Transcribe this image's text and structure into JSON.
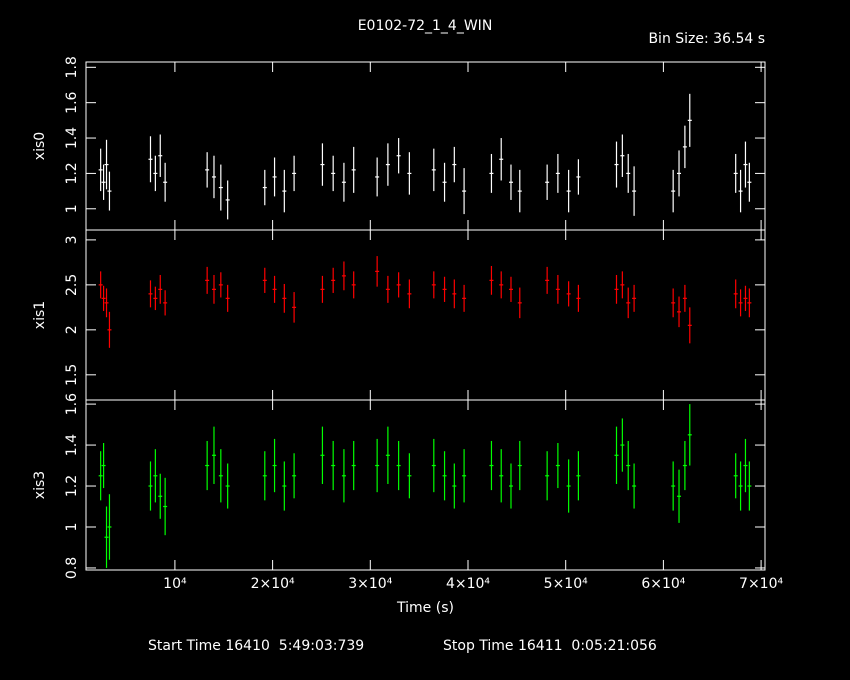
{
  "chart_data": [
    {
      "type": "scatter",
      "title": "E0102-72_1_4_WIN",
      "subtitle": "Bin Size: 36.54 s",
      "ylabel": "xis0",
      "color": "#ffffff",
      "x": [
        2400,
        2700,
        3000,
        3300,
        7500,
        8000,
        8500,
        9000,
        13300,
        14000,
        14700,
        15400,
        19200,
        20200,
        21200,
        22200,
        25100,
        26200,
        27300,
        28300,
        30700,
        31800,
        32900,
        34000,
        36500,
        37600,
        38600,
        39600,
        42400,
        43400,
        44400,
        45300,
        48100,
        49200,
        50300,
        51300,
        55200,
        55800,
        56400,
        57000,
        61000,
        61600,
        62200,
        62700,
        67400,
        67900,
        68400,
        68800
      ],
      "values": [
        1.22,
        1.15,
        1.25,
        1.1,
        1.28,
        1.2,
        1.3,
        1.15,
        1.22,
        1.18,
        1.12,
        1.05,
        1.12,
        1.18,
        1.1,
        1.2,
        1.25,
        1.2,
        1.15,
        1.22,
        1.18,
        1.25,
        1.3,
        1.2,
        1.22,
        1.15,
        1.25,
        1.1,
        1.2,
        1.28,
        1.15,
        1.1,
        1.15,
        1.2,
        1.1,
        1.18,
        1.25,
        1.3,
        1.2,
        1.1,
        1.1,
        1.2,
        1.35,
        1.5,
        1.2,
        1.1,
        1.25,
        1.15
      ],
      "errors": [
        0.12,
        0.1,
        0.14,
        0.11,
        0.13,
        0.1,
        0.12,
        0.11,
        0.1,
        0.12,
        0.13,
        0.11,
        0.1,
        0.11,
        0.12,
        0.1,
        0.12,
        0.1,
        0.11,
        0.13,
        0.11,
        0.12,
        0.1,
        0.12,
        0.12,
        0.11,
        0.1,
        0.13,
        0.11,
        0.12,
        0.1,
        0.12,
        0.1,
        0.11,
        0.12,
        0.1,
        0.13,
        0.12,
        0.11,
        0.14,
        0.12,
        0.13,
        0.12,
        0.15,
        0.11,
        0.12,
        0.13,
        0.11
      ],
      "ylim": [
        0.88,
        1.83
      ],
      "yticks": [
        1,
        1.2,
        1.4,
        1.6,
        1.8
      ]
    },
    {
      "type": "scatter",
      "ylabel": "xis1",
      "color": "#ff0000",
      "x": [
        2400,
        2700,
        3000,
        3300,
        7500,
        8000,
        8500,
        9000,
        13300,
        14000,
        14700,
        15400,
        19200,
        20200,
        21200,
        22200,
        25100,
        26200,
        27300,
        28300,
        30700,
        31800,
        32900,
        34000,
        36500,
        37600,
        38600,
        39600,
        42400,
        43400,
        44400,
        45300,
        48100,
        49200,
        50300,
        51300,
        55200,
        55800,
        56400,
        57000,
        61000,
        61600,
        62200,
        62700,
        67400,
        67900,
        68400,
        68800
      ],
      "values": [
        2.5,
        2.35,
        2.3,
        2.0,
        2.4,
        2.35,
        2.45,
        2.3,
        2.55,
        2.45,
        2.5,
        2.35,
        2.55,
        2.45,
        2.35,
        2.25,
        2.45,
        2.55,
        2.6,
        2.5,
        2.65,
        2.45,
        2.5,
        2.4,
        2.5,
        2.45,
        2.4,
        2.35,
        2.55,
        2.5,
        2.45,
        2.3,
        2.55,
        2.45,
        2.4,
        2.35,
        2.45,
        2.5,
        2.3,
        2.35,
        2.3,
        2.2,
        2.35,
        2.05,
        2.4,
        2.3,
        2.35,
        2.3
      ],
      "errors": [
        0.15,
        0.14,
        0.16,
        0.2,
        0.15,
        0.13,
        0.16,
        0.14,
        0.15,
        0.16,
        0.14,
        0.15,
        0.14,
        0.15,
        0.16,
        0.17,
        0.15,
        0.14,
        0.16,
        0.15,
        0.17,
        0.15,
        0.14,
        0.16,
        0.15,
        0.14,
        0.16,
        0.15,
        0.16,
        0.15,
        0.14,
        0.17,
        0.15,
        0.16,
        0.14,
        0.15,
        0.16,
        0.15,
        0.17,
        0.15,
        0.16,
        0.17,
        0.15,
        0.2,
        0.16,
        0.15,
        0.14,
        0.16
      ],
      "ylim": [
        1.22,
        3.11
      ],
      "yticks": [
        1.5,
        2,
        2.5,
        3
      ]
    },
    {
      "type": "scatter",
      "ylabel": "xis3",
      "xlabel": "Time (s)",
      "color": "#00ff00",
      "x": [
        2400,
        2700,
        3000,
        3300,
        7500,
        8000,
        8500,
        9000,
        13300,
        14000,
        14700,
        15400,
        19200,
        20200,
        21200,
        22200,
        25100,
        26200,
        27300,
        28300,
        30700,
        31800,
        32900,
        34000,
        36500,
        37600,
        38600,
        39600,
        42400,
        43400,
        44400,
        45300,
        48100,
        49200,
        50300,
        51300,
        55200,
        55800,
        56400,
        57000,
        61000,
        61600,
        62200,
        62700,
        67400,
        67900,
        68400,
        68800
      ],
      "values": [
        1.25,
        1.3,
        0.95,
        1.0,
        1.2,
        1.25,
        1.15,
        1.1,
        1.3,
        1.35,
        1.25,
        1.2,
        1.25,
        1.3,
        1.2,
        1.25,
        1.35,
        1.3,
        1.25,
        1.3,
        1.3,
        1.35,
        1.3,
        1.25,
        1.3,
        1.25,
        1.2,
        1.25,
        1.3,
        1.25,
        1.2,
        1.3,
        1.25,
        1.3,
        1.2,
        1.25,
        1.35,
        1.4,
        1.3,
        1.2,
        1.2,
        1.15,
        1.3,
        1.45,
        1.25,
        1.2,
        1.3,
        1.2
      ],
      "errors": [
        0.12,
        0.11,
        0.15,
        0.16,
        0.12,
        0.13,
        0.11,
        0.14,
        0.12,
        0.14,
        0.13,
        0.11,
        0.12,
        0.13,
        0.12,
        0.11,
        0.14,
        0.12,
        0.13,
        0.12,
        0.13,
        0.14,
        0.12,
        0.11,
        0.13,
        0.12,
        0.11,
        0.13,
        0.12,
        0.13,
        0.11,
        0.12,
        0.12,
        0.11,
        0.13,
        0.12,
        0.14,
        0.13,
        0.12,
        0.11,
        0.12,
        0.13,
        0.12,
        0.15,
        0.11,
        0.12,
        0.13,
        0.12
      ],
      "ylim": [
        0.79,
        1.62
      ],
      "yticks": [
        0.8,
        1,
        1.2,
        1.4,
        1.6
      ],
      "xlim": [
        900,
        70400
      ],
      "xticks": [
        {
          "value": 10000,
          "label": "10⁴"
        },
        {
          "value": 20000,
          "label": "2×10⁴"
        },
        {
          "value": 30000,
          "label": "3×10⁴"
        },
        {
          "value": 40000,
          "label": "4×10⁴"
        },
        {
          "value": 50000,
          "label": "5×10⁴"
        },
        {
          "value": 60000,
          "label": "6×10⁴"
        },
        {
          "value": 70000,
          "label": "7×10⁴"
        }
      ]
    }
  ],
  "footer": {
    "start": "Start Time 16410  5:49:03:739",
    "stop": "Stop Time 16411  0:05:21:056"
  }
}
